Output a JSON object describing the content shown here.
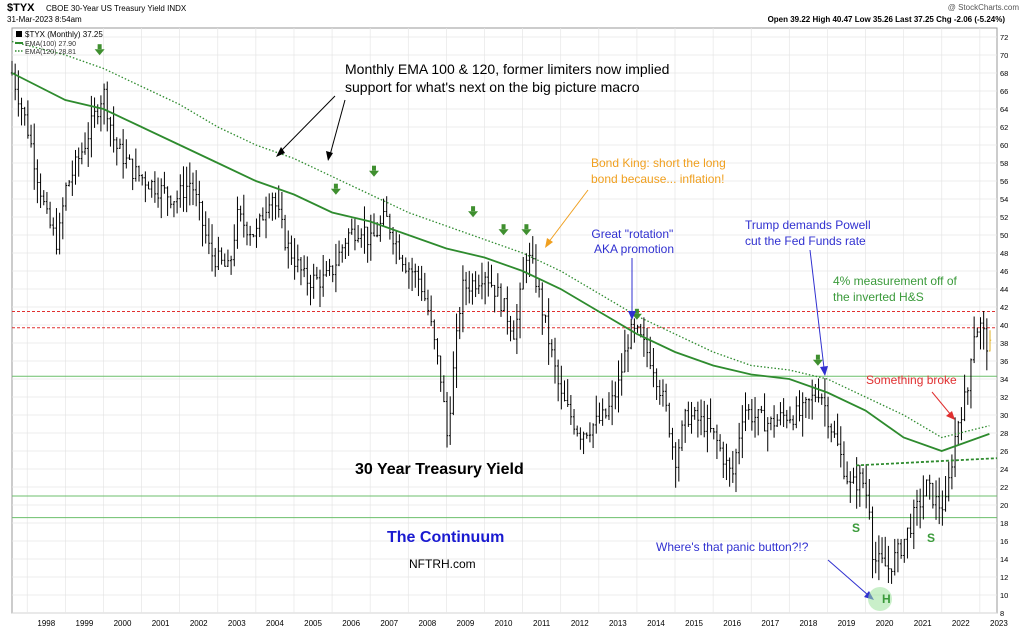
{
  "header": {
    "symbol": "$TYX",
    "description": "CBOE 30-Year US Treasury Yield INDX",
    "date": "31-Mar-2023 8:54am",
    "stats": "Open 39.22  High 40.47  Low 35.26  Last 37.25  Chg -2.06 (-5.24%)",
    "watermark": "@ StockCharts.com"
  },
  "legend": [
    {
      "label": "$TYX (Monthly) 37.25",
      "color": "#000000"
    },
    {
      "label": "EMA(100) 27.90",
      "color": "#2e8b2e"
    },
    {
      "label": "EMA(120) 28.81",
      "color": "#2e8b2e"
    }
  ],
  "annotations": {
    "ema_note": "Monthly EMA 100 & 120, former limiters now implied\nsupport for what's next on the big picture macro",
    "bond_king": "Bond King: short the long\nbond because... inflation!",
    "rotation": "Great \"rotation\"\nAKA promotion",
    "trump": "Trump demands Powell\ncut the Fed Funds rate",
    "measurement": "4% measurement off of\nthe inverted H&S",
    "broke": "Something broke",
    "title": "30 Year Treasury Yield",
    "continuum": "The Continuum",
    "site": "NFTRH.com",
    "panic": "Where's that panic button?!?",
    "s_left": "S",
    "s_right": "S",
    "h_label": "H"
  },
  "colors": {
    "ema": "#2e8b2e",
    "hline": "#6cbf6c",
    "red_line": "#e03030",
    "orange": "#f0a020",
    "blue_text": "#3030d0",
    "red_text": "#e03030",
    "green_text": "#3a9a3a",
    "arrow_green": "#3f8f2f"
  },
  "chart_data": {
    "type": "line",
    "y_axis_side": "right",
    "ylim": [
      8,
      73
    ],
    "xlim": [
      1997.6,
      2023.45
    ],
    "y_ticks": [
      8,
      10,
      12,
      14,
      16,
      18,
      20,
      22,
      24,
      26,
      28,
      30,
      32,
      34,
      36,
      38,
      40,
      42,
      44,
      46,
      48,
      50,
      52,
      54,
      56,
      58,
      60,
      62,
      64,
      66,
      68,
      70,
      72
    ],
    "x_ticks": [
      "1998",
      "1999",
      "2000",
      "2001",
      "2002",
      "2003",
      "2004",
      "2005",
      "2006",
      "2007",
      "2008",
      "2009",
      "2010",
      "2011",
      "2012",
      "2013",
      "2014",
      "2015",
      "2016",
      "2017",
      "2018",
      "2019",
      "2020",
      "2021",
      "2022",
      "2023"
    ],
    "series": [
      {
        "name": "$TYX (Monthly)",
        "x": [
          1997.6,
          1998.0,
          1998.5,
          1998.8,
          1999.0,
          1999.5,
          2000.0,
          2000.3,
          2000.8,
          2001.5,
          2001.9,
          2002.3,
          2002.8,
          2003.3,
          2003.5,
          2004.0,
          2004.4,
          2004.8,
          2005.3,
          2005.8,
          2006.0,
          2006.4,
          2006.8,
          2007.0,
          2007.4,
          2007.9,
          2008.3,
          2008.5,
          2008.9,
          2009.0,
          2009.4,
          2009.8,
          2010.0,
          2010.4,
          2010.8,
          2011.1,
          2011.3,
          2011.6,
          2011.9,
          2012.0,
          2012.5,
          2012.9,
          2013.2,
          2013.5,
          2013.8,
          2014.0,
          2014.4,
          2014.8,
          2015.0,
          2015.3,
          2015.8,
          2016.1,
          2016.5,
          2016.8,
          2017.0,
          2017.5,
          2017.9,
          2018.3,
          2018.8,
          2019.0,
          2019.6,
          2019.9,
          2020.1,
          2020.2,
          2020.6,
          2020.9,
          2021.2,
          2021.6,
          2021.9,
          2022.1,
          2022.4,
          2022.7,
          2022.8,
          2023.0,
          2023.25
        ],
        "values": [
          68,
          62,
          52,
          49,
          55,
          60,
          66,
          60,
          57,
          55,
          54,
          56,
          48,
          46,
          52,
          50,
          55,
          49,
          45,
          45,
          46,
          50,
          51,
          49,
          52,
          47,
          45,
          42,
          33,
          27,
          44,
          45,
          46,
          43,
          39,
          48,
          46,
          40,
          34,
          32,
          28,
          29,
          30,
          33,
          39,
          39,
          36,
          30,
          25,
          30,
          29,
          27,
          23,
          31,
          30,
          29,
          30,
          30,
          33,
          30,
          22,
          23,
          20,
          14,
          13,
          15,
          18,
          22,
          20,
          20,
          29,
          33,
          39,
          40,
          37.25
        ]
      },
      {
        "name": "EMA(100)",
        "x": [
          1997.6,
          1999,
          2000,
          2001,
          2002,
          2003,
          2004,
          2005,
          2006,
          2007,
          2008,
          2009,
          2010,
          2011,
          2012,
          2013,
          2014,
          2015,
          2016,
          2017,
          2018,
          2019,
          2020,
          2021,
          2022,
          2023.25
        ],
        "values": [
          68,
          65,
          64,
          62,
          60,
          58,
          56,
          54.5,
          52.5,
          51.5,
          50,
          48.5,
          47.5,
          46,
          44,
          41.5,
          39,
          37,
          35.5,
          34.5,
          34,
          32.5,
          30.5,
          27.5,
          26,
          27.9
        ]
      },
      {
        "name": "EMA(120)",
        "x": [
          1997.6,
          1999,
          2000,
          2001,
          2002,
          2003,
          2004,
          2005,
          2006,
          2007,
          2008,
          2009,
          2010,
          2011,
          2012,
          2013,
          2014,
          2015,
          2016,
          2017,
          2018,
          2019,
          2020,
          2021,
          2022,
          2023.25
        ],
        "values": [
          71.5,
          70,
          68.5,
          66.5,
          64.5,
          62,
          60,
          58.5,
          56.5,
          54.5,
          52.5,
          51,
          49.5,
          48,
          46,
          43.5,
          41,
          39,
          37,
          35.5,
          35,
          34,
          32,
          30,
          27.5,
          28.81
        ]
      }
    ],
    "horizontal_lines": [
      {
        "y": 41.5,
        "style": "dashed",
        "color": "red"
      },
      {
        "y": 39.7,
        "style": "dashed",
        "color": "red"
      },
      {
        "y": 34.3,
        "style": "solid",
        "color": "green"
      },
      {
        "y": 21,
        "style": "solid",
        "color": "green"
      },
      {
        "y": 18.6,
        "style": "solid",
        "color": "green"
      }
    ],
    "neckline": {
      "x": [
        2019.75,
        2023.45
      ],
      "values": [
        24.4,
        25.2
      ]
    },
    "green_markers": [
      {
        "x": 1999.9,
        "y": 70.2
      },
      {
        "x": 2006.1,
        "y": 54.7
      },
      {
        "x": 2007.1,
        "y": 56.7
      },
      {
        "x": 2009.7,
        "y": 52.2
      },
      {
        "x": 2010.5,
        "y": 50.2
      },
      {
        "x": 2011.1,
        "y": 50.2
      },
      {
        "x": 2014.0,
        "y": 40.8
      },
      {
        "x": 2018.75,
        "y": 35.7
      }
    ]
  }
}
